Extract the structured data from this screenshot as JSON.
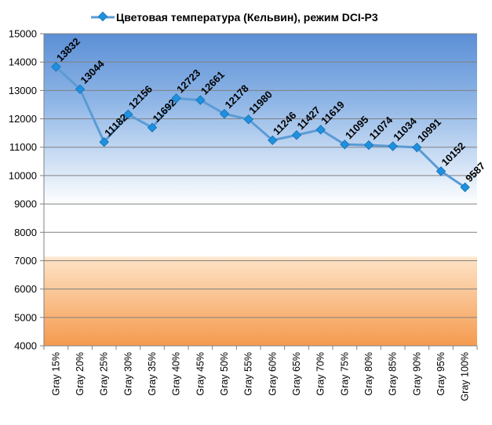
{
  "chart_data": {
    "type": "line",
    "categories": [
      "Gray 15%",
      "Gray 20%",
      "Gray 25%",
      "Gray 30%",
      "Gray 35%",
      "Gray 40%",
      "Gray 45%",
      "Gray 50%",
      "Gray 55%",
      "Gray 60%",
      "Gray 65%",
      "Gray 70%",
      "Gray 75%",
      "Gray 80%",
      "Gray 85%",
      "Gray 90%",
      "Gray 95%",
      "Gray 100%"
    ],
    "series": [
      {
        "name": "Цветовая температура (Кельвин), режим DCI-P3",
        "values": [
          13832,
          13044,
          11182,
          12156,
          11692,
          12723,
          12661,
          12178,
          11980,
          11246,
          11427,
          11619,
          11095,
          11074,
          11034,
          10991,
          10152,
          9587
        ]
      }
    ],
    "ylim": [
      4000,
      15000
    ],
    "yticks": [
      4000,
      5000,
      6000,
      7000,
      8000,
      9000,
      10000,
      11000,
      12000,
      13000,
      14000,
      15000
    ],
    "grid": true,
    "legend": "top",
    "colors": {
      "line": "#5b9bd5",
      "marker": "#1e90e0",
      "background_top": "#5a8fd6",
      "background_mid": "#ffffff",
      "background_bottom": "#f7a35a"
    }
  }
}
